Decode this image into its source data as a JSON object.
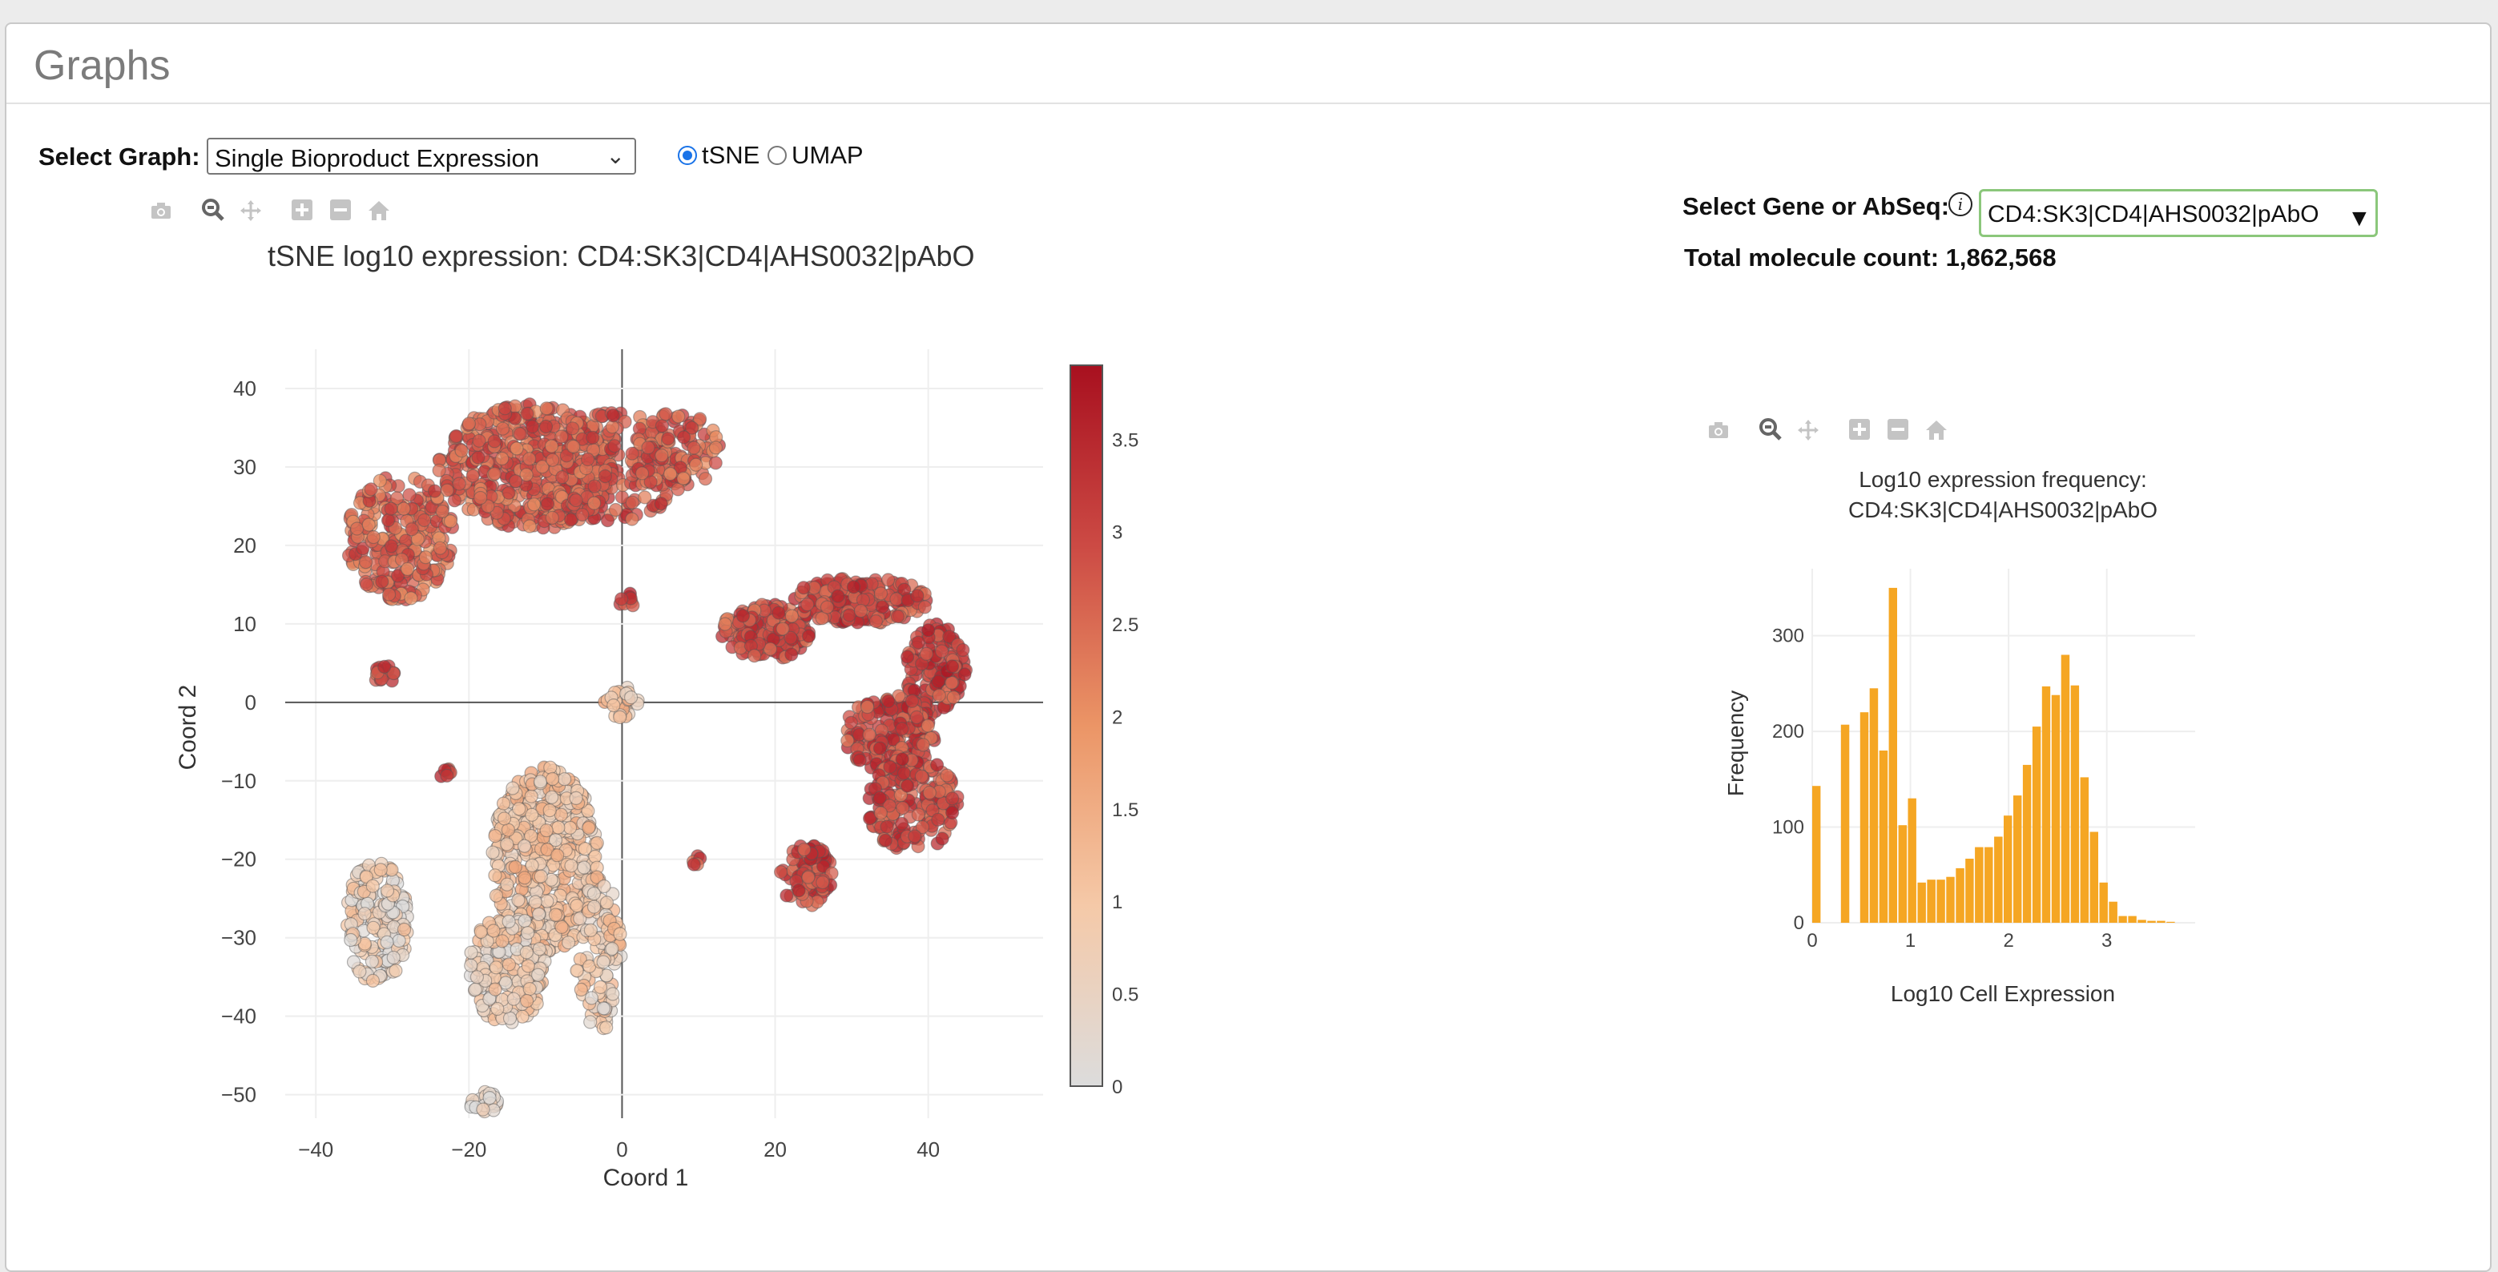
{
  "panel": {
    "title": "Graphs"
  },
  "controls": {
    "select_graph_label": "Select Graph:",
    "select_graph_value": "Single Bioproduct Expression",
    "radio_tsne": "tSNE",
    "radio_umap": "UMAP",
    "selected_radio": "tSNE",
    "gene_label": "Select Gene or AbSeq:",
    "gene_value": "CD4:SK3|CD4|AHS0032|pAbO",
    "total_label": "Total molecule count: 1,862,568"
  },
  "toolbar_icons": [
    "camera-icon",
    "zoom-icon",
    "pan-icon",
    "zoom-in-icon",
    "zoom-out-icon",
    "home-icon"
  ],
  "colors": {
    "scale_low": "#dcdcdc",
    "scale_mid": "#f0a77a",
    "scale_high": "#b2182b",
    "histogram_bar": "#f5a623",
    "input_border": "#8bc77b"
  },
  "chart_data": [
    {
      "type": "scatter",
      "title": "tSNE log10 expression: CD4:SK3|CD4|AHS0032|pAbO",
      "xlabel": "Coord 1",
      "ylabel": "Coord 2",
      "xlim": [
        -44,
        55
      ],
      "ylim": [
        -53,
        45
      ],
      "xticks": [
        "−40",
        "−20",
        "0",
        "20",
        "40"
      ],
      "yticks": [
        "40",
        "30",
        "20",
        "10",
        "0",
        "−10",
        "−20",
        "−30",
        "−40",
        "−50"
      ],
      "colorbar": {
        "ticks": [
          "3.5",
          "3",
          "2.5",
          "2",
          "1.5",
          "1",
          "0.5",
          "0"
        ],
        "range": [
          0,
          3.9
        ]
      },
      "clusters": [
        {
          "cx": -12,
          "cy": 30,
          "rx": 12,
          "ry": 8,
          "n": 520,
          "expr": 2.7
        },
        {
          "cx": -29,
          "cy": 21,
          "rx": 7,
          "ry": 8,
          "n": 260,
          "expr": 2.6
        },
        {
          "cx": -1,
          "cy": 30,
          "rx": 9,
          "ry": 7,
          "n": 160,
          "expr": 2.8
        },
        {
          "cx": 7,
          "cy": 32,
          "rx": 6,
          "ry": 5,
          "n": 120,
          "expr": 2.7
        },
        {
          "cx": -31,
          "cy": 3.5,
          "rx": 1.5,
          "ry": 1.2,
          "n": 18,
          "expr": 3.0
        },
        {
          "cx": 0.5,
          "cy": 13,
          "rx": 1.2,
          "ry": 1,
          "n": 8,
          "expr": 3.2
        },
        {
          "cx": 19,
          "cy": 9,
          "rx": 6,
          "ry": 3.5,
          "n": 170,
          "expr": 2.9
        },
        {
          "cx": 31,
          "cy": 13,
          "rx": 9,
          "ry": 3,
          "n": 200,
          "expr": 3.0
        },
        {
          "cx": 41,
          "cy": 4,
          "rx": 4,
          "ry": 6,
          "n": 140,
          "expr": 3.1
        },
        {
          "cx": 35,
          "cy": -4,
          "rx": 6,
          "ry": 5,
          "n": 170,
          "expr": 3.0
        },
        {
          "cx": 38,
          "cy": -13,
          "rx": 6,
          "ry": 6,
          "n": 180,
          "expr": 3.0
        },
        {
          "cx": 24,
          "cy": -22,
          "rx": 3.5,
          "ry": 4,
          "n": 90,
          "expr": 3.1
        },
        {
          "cx": -10,
          "cy": -20,
          "rx": 7,
          "ry": 12,
          "n": 480,
          "expr": 1.0
        },
        {
          "cx": -15,
          "cy": -34,
          "rx": 5,
          "ry": 7,
          "n": 200,
          "expr": 0.7
        },
        {
          "cx": -32,
          "cy": -28,
          "rx": 4,
          "ry": 8,
          "n": 180,
          "expr": 0.6
        },
        {
          "cx": -3,
          "cy": -32,
          "rx": 3,
          "ry": 10,
          "n": 110,
          "expr": 0.8
        },
        {
          "cx": -18,
          "cy": -51,
          "rx": 2,
          "ry": 1.5,
          "n": 25,
          "expr": 0.2
        },
        {
          "cx": -23,
          "cy": -9,
          "rx": 1,
          "ry": 0.6,
          "n": 8,
          "expr": 3.0
        },
        {
          "cx": 9.5,
          "cy": -20,
          "rx": 0.8,
          "ry": 0.8,
          "n": 5,
          "expr": 3.1
        },
        {
          "cx": 0,
          "cy": 0,
          "rx": 2.5,
          "ry": 2,
          "n": 30,
          "expr": 1.1
        }
      ]
    },
    {
      "type": "bar",
      "title": "Log10 expression frequency:",
      "subtitle": "CD4:SK3|CD4|AHS0032|pAbO",
      "xlabel": "Log10 Cell Expression",
      "ylabel": "Frequency",
      "xlim": [
        0,
        3.9
      ],
      "ylim": [
        0,
        350
      ],
      "xticks": [
        "0",
        "1",
        "2",
        "3"
      ],
      "yticks": [
        "0",
        "100",
        "200",
        "300"
      ],
      "bin_width": 0.0975,
      "values": [
        143,
        0,
        0,
        207,
        0,
        220,
        245,
        180,
        350,
        102,
        130,
        42,
        45,
        45,
        48,
        57,
        67,
        79,
        79,
        90,
        112,
        133,
        165,
        205,
        247,
        238,
        280,
        248,
        152,
        95,
        42,
        22,
        7,
        7,
        3,
        2,
        2,
        1,
        0,
        0
      ]
    }
  ]
}
